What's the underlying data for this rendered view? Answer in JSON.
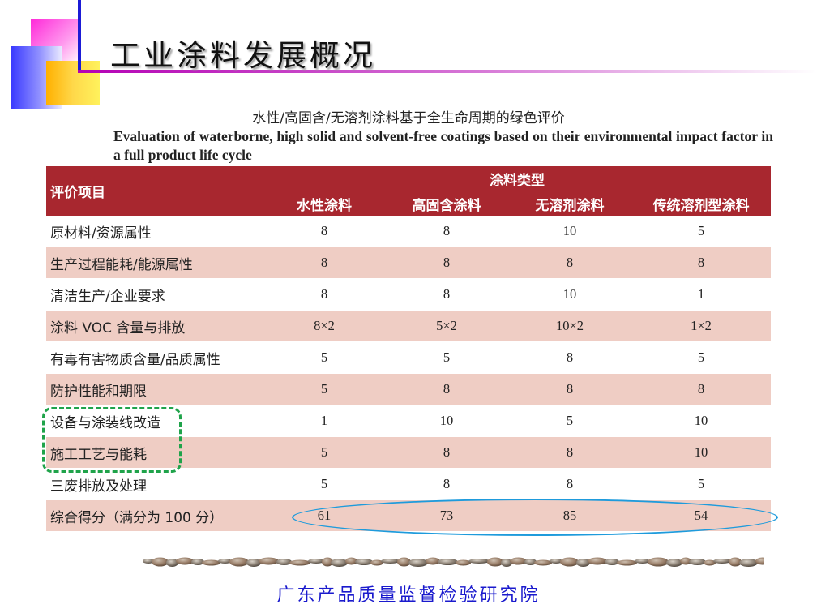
{
  "slide": {
    "title": "工业涂料发展概况",
    "footer": "广东产品质量监督检验研究院"
  },
  "caption": {
    "cn": "水性/高固含/无溶剂涂料基于全生命周期的绿色评价",
    "en": "Evaluation of waterborne, high solid and solvent-free coatings based on their environmental impact factor in a full product life cycle"
  },
  "table": {
    "row_header": "评价项目",
    "group_header": "涂料类型",
    "columns": [
      "水性涂料",
      "高固含涂料",
      "无溶剂涂料",
      "传统溶剂型涂料"
    ],
    "rows": [
      {
        "label": "原材料/资源属性",
        "values": [
          "8",
          "8",
          "10",
          "5"
        ]
      },
      {
        "label": "生产过程能耗/能源属性",
        "values": [
          "8",
          "8",
          "8",
          "8"
        ]
      },
      {
        "label": "清洁生产/企业要求",
        "values": [
          "8",
          "8",
          "10",
          "1"
        ]
      },
      {
        "label": "涂料 VOC 含量与排放",
        "values": [
          "8×2",
          "5×2",
          "10×2",
          "1×2"
        ]
      },
      {
        "label": "有毒有害物质含量/品质属性",
        "values": [
          "5",
          "5",
          "8",
          "5"
        ]
      },
      {
        "label": "防护性能和期限",
        "values": [
          "5",
          "8",
          "8",
          "8"
        ]
      },
      {
        "label": "设备与涂装线改造",
        "values": [
          "1",
          "10",
          "5",
          "10"
        ]
      },
      {
        "label": "施工工艺与能耗",
        "values": [
          "5",
          "8",
          "8",
          "10"
        ]
      },
      {
        "label": "三废排放及处理",
        "values": [
          "5",
          "8",
          "8",
          "5"
        ]
      },
      {
        "label": "综合得分（满分为 100 分）",
        "values": [
          "61",
          "73",
          "85",
          "54"
        ]
      }
    ]
  },
  "colors": {
    "header_bg": "#a8272f",
    "row_shade": "#efcdc4",
    "highlight_green": "#1fa34a",
    "highlight_blue": "#1e9bdc",
    "footer_text": "#1a1acd"
  }
}
